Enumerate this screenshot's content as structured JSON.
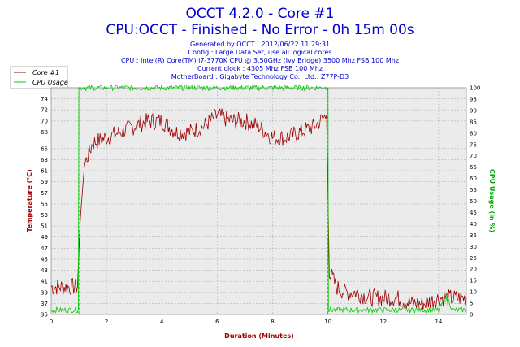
{
  "chart_data": {
    "type": "line",
    "title": "OCCT 4.2.0 - Core #1",
    "subtitle": "CPU:OCCT - Finished - No Error - 0h 15m 00s",
    "info": [
      "Generated by OCCT : 2012/06/22 11:29:31",
      "Config : Large Data Set, use all logical cores",
      "CPU : Intel(R) Core(TM) i7-3770K CPU @ 3.50GHz (Ivy Bridge) 3500 Mhz FSB 100 Mhz",
      "Current clock : 4305 Mhz FSB 100 Mhz",
      "MotherBoard : Gigabyte Technology Co., Ltd.: Z77P-D3"
    ],
    "xlabel": "Duration (Minutes)",
    "ylabel_left": "Temperature (°C)",
    "ylabel_right": "CPU Usage (in %)",
    "xlim": [
      0,
      15
    ],
    "ylim_left": [
      35,
      76
    ],
    "ylim_right": [
      0,
      100
    ],
    "x_ticks": [
      "0",
      "2",
      "4",
      "6",
      "8",
      "10",
      "12",
      "14"
    ],
    "y_ticks_left": [
      "35",
      "37",
      "39",
      "41",
      "43",
      "45",
      "47",
      "49",
      "51",
      "53",
      "55",
      "57",
      "59",
      "61",
      "63",
      "65",
      "68",
      "70",
      "72",
      "74"
    ],
    "y_ticks_right": [
      "0",
      "5",
      "10",
      "15",
      "20",
      "25",
      "30",
      "35",
      "40",
      "45",
      "50",
      "55",
      "60",
      "65",
      "70",
      "75",
      "80",
      "85",
      "90",
      "95",
      "100"
    ],
    "grid": true,
    "legend_position": "top-left",
    "markers_x": [
      1,
      10
    ],
    "marker_color": "#00cc00",
    "series": [
      {
        "name": "Core #1",
        "axis": "left",
        "color": "#990000",
        "x": [
          0,
          0.5,
          0.95,
          1.05,
          1.2,
          1.5,
          2,
          2.5,
          3,
          3.5,
          4,
          4.5,
          5,
          5.5,
          6,
          6.5,
          7,
          7.5,
          8,
          8.5,
          9,
          9.5,
          9.95,
          10.05,
          10.3,
          10.6,
          11,
          11.5,
          12,
          12.5,
          13,
          13.5,
          14,
          14.5,
          15
        ],
        "values": [
          40,
          40,
          40,
          52,
          62,
          66,
          67,
          68,
          69,
          70,
          70,
          68,
          68,
          69,
          71,
          70,
          70,
          69,
          67,
          67,
          68,
          69,
          71,
          43,
          40,
          39,
          39,
          38,
          38,
          38,
          37,
          37,
          38,
          38,
          38
        ]
      },
      {
        "name": "CPU Usage",
        "axis": "right",
        "color": "#00cc00",
        "x": [
          0,
          0.5,
          0.98,
          1.0,
          1.02,
          9.98,
          10.0,
          10.02,
          10.5,
          11,
          12,
          13,
          14,
          14.3,
          14.5,
          15
        ],
        "values": [
          2,
          2,
          2,
          100,
          100,
          100,
          100,
          2,
          2,
          2,
          2,
          2,
          2,
          8,
          2,
          2
        ]
      }
    ]
  }
}
